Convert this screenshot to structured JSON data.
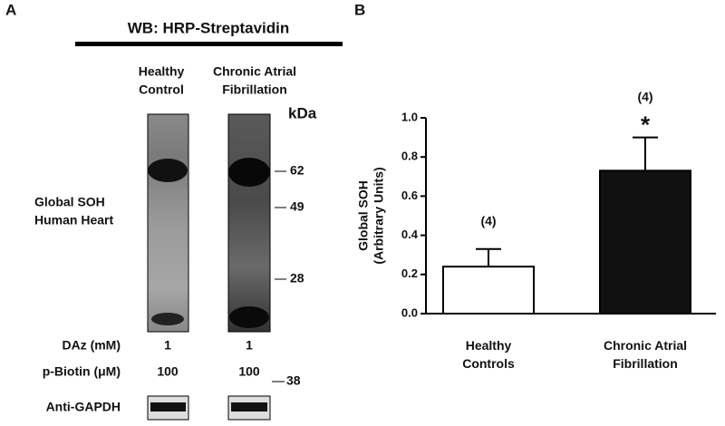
{
  "panel_a": {
    "label": "A",
    "title": "WB: HRP-Streptavidin",
    "lane_labels": [
      [
        "Healthy",
        "Control"
      ],
      [
        "Chronic Atrial",
        "Fibrillation"
      ]
    ],
    "unit": "kDa",
    "markers": [
      "62",
      "49",
      "28"
    ],
    "gapdh_marker": "38",
    "side_label": [
      "Global SOH",
      "Human Heart"
    ],
    "rows": [
      {
        "label": "DAz (mM)",
        "values": [
          "1",
          "1"
        ]
      },
      {
        "label": "p-Biotin (μM)",
        "values": [
          "100",
          "100"
        ]
      }
    ],
    "loading_label": "Anti-GAPDH"
  },
  "chart_data": {
    "type": "bar",
    "panel_label": "B",
    "categories": [
      "Healthy Controls",
      "Chronic Atrial Fibrillation"
    ],
    "values": [
      0.24,
      0.73
    ],
    "errors": [
      0.09,
      0.17
    ],
    "colors": [
      "#ffffff",
      "#111111"
    ],
    "n_labels": [
      "(4)",
      "(4)"
    ],
    "significance_label": "*",
    "y_label": [
      "Global SOH",
      "(Arbitrary Units)"
    ],
    "ylim": [
      0,
      1.0
    ],
    "yticks": [
      {
        "value": 0,
        "label": "0.0"
      },
      {
        "value": 0.2,
        "label": "0.2"
      },
      {
        "value": 0.4,
        "label": "0.4"
      },
      {
        "value": 0.6,
        "label": "0.6"
      },
      {
        "value": 0.8,
        "label": "0.8"
      },
      {
        "value": 1.0,
        "label": "1.0"
      }
    ]
  }
}
